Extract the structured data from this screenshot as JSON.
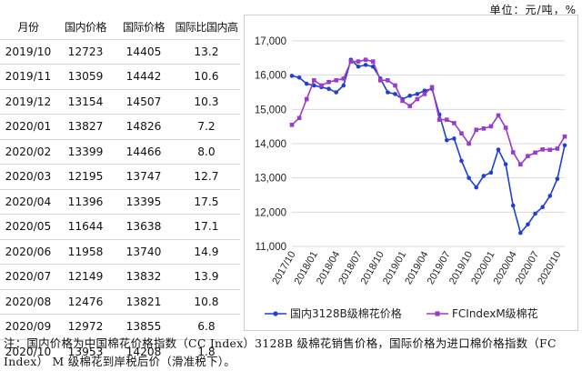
{
  "unit_label": "单位：元/吨，%",
  "table": {
    "headers": [
      "月份",
      "国内价格",
      "国际价格",
      "国际比国内高"
    ],
    "rows": [
      [
        "2019/10",
        "12723",
        "14405",
        "13.2"
      ],
      [
        "2019/11",
        "13059",
        "14442",
        "10.6"
      ],
      [
        "2019/12",
        "13154",
        "14507",
        "10.3"
      ],
      [
        "2020/01",
        "13827",
        "14826",
        "7.2"
      ],
      [
        "2020/02",
        "13399",
        "14466",
        "8.0"
      ],
      [
        "2020/03",
        "12195",
        "13747",
        "12.7"
      ],
      [
        "2020/04",
        "11396",
        "13395",
        "17.5"
      ],
      [
        "2020/05",
        "11644",
        "13638",
        "17.1"
      ],
      [
        "2020/06",
        "11958",
        "13740",
        "14.9"
      ],
      [
        "2020/07",
        "12149",
        "13832",
        "13.9"
      ],
      [
        "2020/08",
        "12476",
        "13821",
        "10.8"
      ],
      [
        "2020/09",
        "12972",
        "13855",
        "6.8"
      ],
      [
        "2020/10",
        "13953",
        "14208",
        "1.8"
      ]
    ]
  },
  "chart_data": {
    "type": "line",
    "ylim": [
      11000,
      17000
    ],
    "yticks": [
      "11,000",
      "12,000",
      "13,000",
      "14,000",
      "15,000",
      "16,000",
      "17,000"
    ],
    "ytick_values": [
      11000,
      12000,
      13000,
      14000,
      15000,
      16000,
      17000
    ],
    "xtick_labels": [
      "2017/10",
      "2018/01",
      "2018/04",
      "2018/07",
      "2018/10",
      "2019/01",
      "2019/04",
      "2019/07",
      "2019/10",
      "2020/01",
      "2020/04",
      "2020/07",
      "2020/10"
    ],
    "legend_position": "bottom",
    "series": [
      {
        "name": "国内3128B级棉花价格",
        "color": "#1f3fd4",
        "marker": "circle",
        "values": [
          15980,
          15930,
          15750,
          15700,
          15650,
          15600,
          15500,
          15700,
          16450,
          16250,
          16300,
          16250,
          15900,
          15500,
          15450,
          15300,
          15400,
          15450,
          15550,
          15600,
          14850,
          14100,
          14150,
          13500,
          13000,
          12723,
          13059,
          13154,
          13827,
          13399,
          12195,
          11396,
          11644,
          11958,
          12149,
          12476,
          12972,
          13953
        ]
      },
      {
        "name": "FCIndexM级棉花",
        "color": "#9a3bc9",
        "marker": "square",
        "values": [
          14550,
          14750,
          15300,
          15850,
          15700,
          15800,
          15850,
          15900,
          16400,
          16400,
          16450,
          16400,
          15850,
          15850,
          15700,
          15250,
          15100,
          15300,
          15450,
          15650,
          14700,
          14700,
          14600,
          14300,
          14000,
          14405,
          14442,
          14507,
          14826,
          14466,
          13747,
          13395,
          13638,
          13740,
          13832,
          13821,
          13855,
          14208
        ]
      }
    ]
  },
  "note": "注：国内价格为中国棉花价格指数（CC Index）3128B 级棉花销售价格，国际价格为进口棉价格指数（FC Index） M 级棉花到岸税后价（滑准税下）。",
  "colors": {
    "grid": "#d9d9d9",
    "axis": "#bfbfbf"
  }
}
